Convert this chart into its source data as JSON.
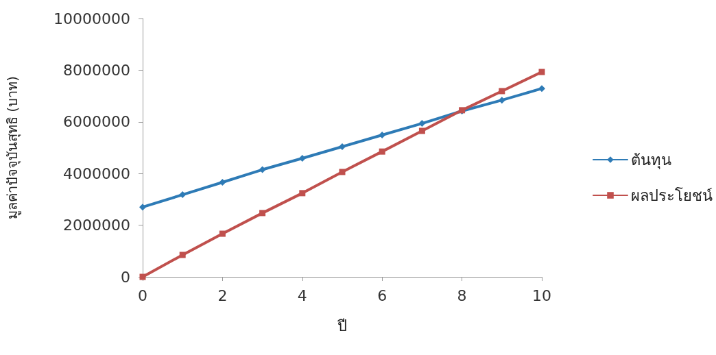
{
  "chart_data": {
    "type": "line",
    "xlabel": "ปี",
    "ylabel": "มูลค่าปัจจุบันสุทธิ (บาท)",
    "x": [
      0,
      1,
      2,
      3,
      4,
      5,
      6,
      7,
      8,
      9,
      10
    ],
    "series": [
      {
        "name": "ต้นทุน",
        "color": "#2e7bb6",
        "marker": "diamond",
        "values": [
          2700000,
          3180000,
          3660000,
          4150000,
          4590000,
          5040000,
          5490000,
          5940000,
          6420000,
          6840000,
          7290000
        ]
      },
      {
        "name": "ผลประโยชน์",
        "color": "#c0504d",
        "marker": "square",
        "values": [
          0,
          850000,
          1670000,
          2470000,
          3240000,
          4060000,
          4850000,
          5650000,
          6450000,
          7190000,
          7930000
        ]
      }
    ],
    "xlim": [
      0,
      10
    ],
    "xticks": [
      0,
      2,
      4,
      6,
      8,
      10
    ],
    "ylim": [
      0,
      10000000
    ],
    "yticks": [
      0,
      2000000,
      4000000,
      6000000,
      8000000,
      10000000
    ],
    "grid": false,
    "legend": "right",
    "line_style": "solid"
  }
}
